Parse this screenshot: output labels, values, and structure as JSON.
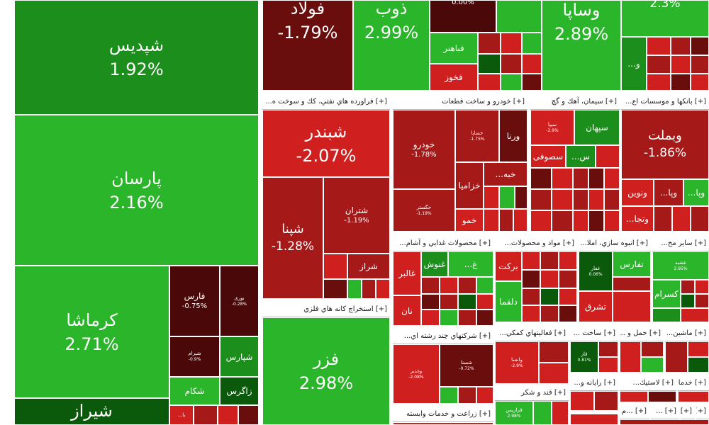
{
  "colors": {
    "green_bright": "#2ab52a",
    "green_mid": "#1c8e1c",
    "green_dark": "#0b5a0b",
    "red_bright": "#d01f1f",
    "red_mid": "#a51919",
    "red_dark": "#6a0d0d",
    "maroon": "#4a0808"
  },
  "tiles": {
    "shapdis": {
      "name": "شپدیس",
      "pct": "1.92%"
    },
    "parsan": {
      "name": "پارسان",
      "pct": "2.16%"
    },
    "kermasha": {
      "name": "کرماشا",
      "pct": "2.71%"
    },
    "shiraz_partial": {
      "name": "شیراز",
      "pct": ""
    },
    "fars": {
      "name": "فارس",
      "pct": "-0.75%"
    },
    "nouri": {
      "name": "نوری",
      "pct": "-0.28%"
    },
    "shepars": {
      "name": "شپارس",
      "pct": ""
    },
    "shekam": {
      "name": "شکام",
      "pct": ""
    },
    "zagros": {
      "name": "زاگرس",
      "pct": ""
    },
    "shiram": {
      "name": "شیرام",
      "pct": "-0.9%"
    },
    "ba_partial": {
      "name": "...با",
      "pct": ""
    },
    "foolad": {
      "name": "فولاد",
      "pct": "-1.79%"
    },
    "zob": {
      "name": "ذوب",
      "pct": "2.99%"
    },
    "top_dark": {
      "name": "",
      "pct": "0.00%"
    },
    "fabahonar": {
      "name": "فباهنر",
      "pct": ""
    },
    "fakhouz": {
      "name": "فخوز",
      "pct": ""
    },
    "vasapa": {
      "name": "وساپا",
      "pct": "2.89%"
    },
    "top_right": {
      "name": "",
      "pct": "2.3%"
    },
    "o_partial": {
      "name": "...و",
      "pct": ""
    },
    "shabandar": {
      "name": "شبندر",
      "pct": "-2.07%"
    },
    "shepna": {
      "name": "شپنا",
      "pct": "-1.28%"
    },
    "shetran": {
      "name": "شتران",
      "pct": "-1.19%"
    },
    "sheraz": {
      "name": "شراز",
      "pct": ""
    },
    "fazar": {
      "name": "فزر",
      "pct": "2.98%"
    },
    "khodro": {
      "name": "خودرو",
      "pct": "-1.78%"
    },
    "khasapa": {
      "name": "خساپا",
      "pct": "-1.75%"
    },
    "vrena": {
      "name": "ورنا",
      "pct": ""
    },
    "khabah": {
      "name": "...خبه",
      "pct": ""
    },
    "khazamia": {
      "name": "خزامیا",
      "pct": ""
    },
    "khagestar": {
      "name": "خگستر",
      "pct": "-1.19%"
    },
    "khamo": {
      "name": "خمو",
      "pct": ""
    },
    "sipa": {
      "name": "سیپا",
      "pct": "-2.9%"
    },
    "sepahan": {
      "name": "سپهان",
      "pct": ""
    },
    "sofi": {
      "name": "سصوفی",
      "pct": ""
    },
    "s_partial": {
      "name": "...س",
      "pct": ""
    },
    "vebmelat": {
      "name": "وبملت",
      "pct": "-1.86%"
    },
    "vanovin": {
      "name": "ونوین",
      "pct": ""
    },
    "vpa": {
      "name": "...وپا",
      "pct": ""
    },
    "vpa2": {
      "name": "...وپا",
      "pct": ""
    },
    "vetja": {
      "name": "...وتجا",
      "pct": ""
    },
    "ghalbar": {
      "name": "غالبر",
      "pct": ""
    },
    "ghanoush": {
      "name": "غنوش",
      "pct": ""
    },
    "gh_partial": {
      "name": "...غ",
      "pct": ""
    },
    "nan": {
      "name": "نان",
      "pct": ""
    },
    "barkat": {
      "name": "برکت",
      "pct": ""
    },
    "dalghama": {
      "name": "دلقما",
      "pct": ""
    },
    "ghadir": {
      "name": "غفار",
      "pct": "0.06%"
    },
    "tefars": {
      "name": "تفارس",
      "pct": ""
    },
    "tesharq": {
      "name": "تشرق",
      "pct": ""
    },
    "kasra_pct": {
      "name": "غشبه",
      "pct": "2.95%"
    },
    "kasram": {
      "name": "کسرام",
      "pct": ""
    },
    "vaghadir": {
      "name": "وغدیر",
      "pct": "-2.08%"
    },
    "shasta": {
      "name": "شستا",
      "pct": "-0.72%"
    },
    "vansa": {
      "name": "وانسا",
      "pct": "-2.9%"
    },
    "ghazar": {
      "name": "قاز",
      "pct": "0.81%"
    },
    "ghazaris": {
      "name": "قزاریس",
      "pct": "2.98%"
    }
  },
  "headers": {
    "naft": "[+] فراورده هاي نفتي، كك و سوخت ه...",
    "khodro": "[+] خودرو و ساخت قطعات",
    "siman": "[+] سيمان، آهك و گچ",
    "banks": "[+] بانكها و موسسات اع...",
    "estekhraj": "[+] استخراج كانه هاي فلزي",
    "ghazaei": "[+] محصولات غذايي و آشام...",
    "mavad": "[+] مواد و محصولات...",
    "anbooh": "[+] انبوه سازي، املا...",
    "saier": "[+] ساير مح...",
    "chand": "[+] شركتهاي چند رشته اي...",
    "faaliat": "[+] فعاليتهاي كمكي...",
    "sakht": "[+] ساخت ...",
    "haml": "[+] حمل و ...",
    "mashin": "[+] ماشين...",
    "ghand": "[+] قند و شكر",
    "rayane": "[+] رايانه و...",
    "lastik": "[+] لاستيك...",
    "khadama": "[+] خدما...",
    "zeraat": "[+] زراعت و خدمات وابسته",
    "plus1": "[+] ...م",
    "plus2": "[+] ...",
    "plus3": "[+] ...",
    "plus4": "[+] ..."
  }
}
